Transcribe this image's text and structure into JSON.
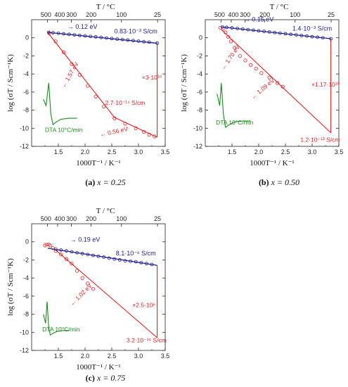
{
  "colors": {
    "fit_line": "#1a1a8c",
    "trend_line": "#e02020",
    "data_points": "#e02020",
    "blue_points": "#1a1a8c",
    "dta": "#1a8c1a",
    "axis": "#222222"
  },
  "chart_data": [
    {
      "type": "scatter",
      "caption": {
        "label": "(a)",
        "text": "x = 0.25"
      },
      "xlabel": "1000T⁻¹ / K⁻¹",
      "ylabel": "log (σT / Scm⁻¹K)",
      "top_label": "T / °C",
      "xlim": [
        1.0,
        3.5
      ],
      "ylim": [
        -12,
        2
      ],
      "x_ticks": [
        "1.5",
        "2.0",
        "2.5",
        "3.0",
        "3.5"
      ],
      "y_ticks": [
        "0",
        "-2",
        "-4",
        "-6",
        "-8",
        "-10",
        "-12"
      ],
      "top_ticks": [
        "500",
        "400",
        "300",
        "200",
        "100",
        "25"
      ],
      "blue_fit": {
        "x": [
          1.3,
          3.35
        ],
        "y": [
          0.6,
          -0.6
        ]
      },
      "blue_points": {
        "x": [
          1.32,
          1.4,
          1.5,
          1.6,
          1.7,
          1.8,
          1.9,
          2.0,
          2.1,
          2.2,
          2.3,
          2.4,
          2.5,
          2.6,
          2.7,
          2.8,
          2.9,
          3.0,
          3.1,
          3.2,
          3.35
        ],
        "y": [
          0.6,
          0.56,
          0.5,
          0.44,
          0.38,
          0.32,
          0.27,
          0.21,
          0.15,
          0.1,
          0.04,
          -0.02,
          -0.08,
          -0.14,
          -0.19,
          -0.25,
          -0.31,
          -0.37,
          -0.43,
          -0.48,
          -0.6
        ]
      },
      "red_points": {
        "x": [
          1.33,
          1.45,
          1.6,
          1.75,
          1.9,
          2.05,
          2.2,
          2.35,
          2.55,
          2.75,
          2.95,
          3.1,
          3.2,
          3.3
        ],
        "y": [
          0.5,
          -0.4,
          -1.6,
          -2.9,
          -4.1,
          -5.3,
          -6.5,
          -7.6,
          -8.9,
          -9.5,
          -10.0,
          -10.4,
          -10.7,
          -10.9
        ]
      },
      "red_lines": [
        {
          "x": [
            1.3,
            2.55
          ],
          "y": [
            0.6,
            -8.8
          ]
        },
        {
          "x": [
            2.55,
            3.35
          ],
          "y": [
            -8.8,
            -11.0
          ]
        },
        {
          "x": [
            3.35,
            3.35
          ],
          "y": [
            -0.6,
            -11.0
          ]
        }
      ],
      "dta": {
        "x": [
          1.22,
          1.27,
          1.32,
          1.36,
          1.4,
          1.46,
          1.55,
          1.7,
          1.85
        ],
        "y": [
          -6.8,
          -7.5,
          -5.0,
          -8.5,
          -9.6,
          -9.3,
          -9.0,
          -8.9,
          -8.9
        ]
      },
      "annotations": [
        {
          "text": "→ 0.12 eV",
          "x": 1.95,
          "y": 1.0,
          "color": "blue",
          "rot": 0
        },
        {
          "text": "0.83·10⁻³ S/cm",
          "x": 2.95,
          "y": 0.5,
          "color": "blue",
          "rot": 0
        },
        {
          "text": "×3·10¹⁰",
          "x": 3.25,
          "y": -4.6,
          "color": "red",
          "rot": 0
        },
        {
          "text": "← 1.57 eV",
          "x": 1.75,
          "y": -4.2,
          "color": "red",
          "rot": -60
        },
        {
          "text": "2.7·10⁻¹⁴ S/cm",
          "x": 2.75,
          "y": -7.4,
          "color": "red",
          "rot": 0
        },
        {
          "text": "← 0.56 eV",
          "x": 2.55,
          "y": -10.6,
          "color": "red",
          "rot": -12
        },
        {
          "text": "DTA 10°C/min",
          "x": 1.6,
          "y": -10.4,
          "color": "green",
          "rot": 0
        }
      ]
    },
    {
      "type": "scatter",
      "caption": {
        "label": "(b)",
        "text": "x = 0.50"
      },
      "xlabel": "1000T⁻¹ / K⁻¹",
      "ylabel": "log (σT / Scm⁻¹K)",
      "top_label": "T / °C",
      "xlim": [
        1.0,
        3.5
      ],
      "ylim": [
        -12,
        2
      ],
      "x_ticks": [
        "1.5",
        "2.0",
        "2.5",
        "3.0",
        "3.5"
      ],
      "y_ticks": [
        "0",
        "-2",
        "-4",
        "-6",
        "-8",
        "-10",
        "-12"
      ],
      "top_ticks": [
        "500",
        "400",
        "300",
        "200",
        "100",
        "25"
      ],
      "blue_fit": {
        "x": [
          1.3,
          3.35
        ],
        "y": [
          1.2,
          -0.1
        ]
      },
      "blue_points": {
        "x": [
          1.32,
          1.4,
          1.5,
          1.6,
          1.7,
          1.8,
          1.9,
          2.0,
          2.1,
          2.2,
          2.3,
          2.4,
          2.5,
          2.6,
          2.7,
          2.8,
          2.9,
          3.0,
          3.1,
          3.2,
          3.35
        ],
        "y": [
          1.2,
          1.15,
          1.1,
          1.03,
          0.97,
          0.9,
          0.84,
          0.77,
          0.71,
          0.64,
          0.58,
          0.51,
          0.45,
          0.38,
          0.32,
          0.25,
          0.19,
          0.12,
          0.06,
          0.0,
          -0.1
        ]
      },
      "red_points": {
        "x": [
          1.28,
          1.33,
          1.38,
          1.43,
          1.48,
          1.55,
          1.65,
          1.75,
          1.85,
          1.95,
          2.05,
          2.2,
          2.35,
          2.45
        ],
        "y": [
          1.1,
          1.0,
          0.6,
          0.1,
          -0.4,
          -1.1,
          -2.0,
          -2.5,
          -3.0,
          -3.4,
          -3.9,
          -4.4,
          -5.0,
          -5.4
        ]
      },
      "red_lines": [
        {
          "x": [
            1.3,
            3.35
          ],
          "y": [
            0.9,
            -10.5
          ]
        },
        {
          "x": [
            3.35,
            3.35
          ],
          "y": [
            -0.1,
            -10.5
          ]
        }
      ],
      "dta": {
        "x": [
          1.22,
          1.27,
          1.3,
          1.34,
          1.38,
          1.45,
          1.55,
          1.7,
          1.85
        ],
        "y": [
          -6.2,
          -7.5,
          -5.0,
          -8.5,
          -9.9,
          -9.6,
          -9.3,
          -9.2,
          -9.2
        ]
      },
      "annotations": [
        {
          "text": "→ 0.15 eV",
          "x": 2.0,
          "y": 1.8,
          "color": "blue",
          "rot": 0
        },
        {
          "text": "1.4·10⁻³ S/cm",
          "x": 3.0,
          "y": 0.8,
          "color": "blue",
          "rot": 0
        },
        {
          "text": "← 1.70 eV",
          "x": 1.5,
          "y": -2.3,
          "color": "red",
          "rot": -55
        },
        {
          "text": "← 1.09 eV",
          "x": 2.1,
          "y": -5.8,
          "color": "red",
          "rot": -40
        },
        {
          "text": "×1.17·10¹⁰",
          "x": 3.25,
          "y": -5.4,
          "color": "red",
          "rot": 0
        },
        {
          "text": "1.2·10⁻¹³ S/cm",
          "x": 3.15,
          "y": -11.5,
          "color": "red",
          "rot": 0
        },
        {
          "text": "DTA 10°C/min",
          "x": 1.55,
          "y": -9.6,
          "color": "green",
          "rot": 0
        }
      ]
    },
    {
      "type": "scatter",
      "caption": {
        "label": "(c)",
        "text": "x = 0.75"
      },
      "xlabel": "1000T⁻¹ / K⁻¹",
      "ylabel": "log (σT / Scm⁻¹K)",
      "top_label": "T / °C",
      "xlim": [
        1.0,
        3.5
      ],
      "ylim": [
        -12,
        2
      ],
      "x_ticks": [
        "1.5",
        "2.0",
        "2.5",
        "3.0",
        "3.5"
      ],
      "y_ticks": [
        "0",
        "-2",
        "-4",
        "-6",
        "-8",
        "-10",
        "-12"
      ],
      "top_ticks": [
        "500",
        "400",
        "300",
        "200",
        "100",
        "25"
      ],
      "blue_fit": {
        "x": [
          1.3,
          3.35
        ],
        "y": [
          -0.7,
          -2.6
        ]
      },
      "blue_points": {
        "x": [
          1.45,
          1.55,
          1.65,
          1.75,
          1.85,
          1.95,
          2.05,
          2.15,
          2.25,
          2.35,
          2.45,
          2.55,
          2.65,
          2.75,
          2.85,
          2.95,
          3.05,
          3.15,
          3.25
        ],
        "y": [
          -0.8,
          -0.9,
          -1.0,
          -1.1,
          -1.2,
          -1.3,
          -1.4,
          -1.5,
          -1.6,
          -1.7,
          -1.8,
          -1.9,
          -2.0,
          -2.1,
          -2.15,
          -2.2,
          -2.3,
          -2.4,
          -2.5
        ]
      },
      "red_points": {
        "x": [
          1.25,
          1.28,
          1.32,
          1.35,
          1.4,
          1.45,
          1.55,
          1.65,
          1.75,
          1.85,
          1.95,
          2.05,
          2.15
        ],
        "y": [
          -0.4,
          -0.3,
          -0.3,
          -0.4,
          -0.7,
          -1.0,
          -1.4,
          -1.9,
          -2.4,
          -3.2,
          -4.0,
          -4.6,
          -5.2
        ]
      },
      "red_lines": [
        {
          "x": [
            1.45,
            3.35
          ],
          "y": [
            -0.9,
            -10.6
          ]
        },
        {
          "x": [
            3.35,
            3.35
          ],
          "y": [
            -2.6,
            -10.6
          ]
        }
      ],
      "dta": {
        "x": [
          1.22,
          1.26,
          1.29,
          1.32,
          1.35,
          1.4,
          1.48,
          1.6,
          1.7
        ],
        "y": [
          -8.0,
          -9.0,
          -6.6,
          -9.5,
          -10.3,
          -10.1,
          -9.9,
          -9.8,
          -9.8
        ]
      },
      "annotations": [
        {
          "text": "→ 0.19 eV",
          "x": 2.0,
          "y": 0.0,
          "color": "blue",
          "rot": 0
        },
        {
          "text": "8.1·10⁻⁶ S/cm",
          "x": 2.95,
          "y": -1.5,
          "color": "blue",
          "rot": 0
        },
        {
          "text": "← 1.02 eV",
          "x": 1.95,
          "y": -6.0,
          "color": "red",
          "rot": -45
        },
        {
          "text": "×2.5·10⁸",
          "x": 3.1,
          "y": -7.2,
          "color": "red",
          "rot": 0
        },
        {
          "text": "3.2·10⁻¹⁴ S/cm",
          "x": 3.15,
          "y": -11.1,
          "color": "red",
          "rot": 0
        },
        {
          "text": "DTA 10°C/min",
          "x": 1.55,
          "y": -9.9,
          "color": "green",
          "rot": 0
        }
      ]
    }
  ]
}
